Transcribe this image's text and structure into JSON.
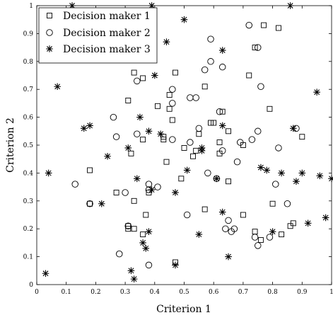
{
  "chart_data": {
    "type": "scatter",
    "title": "",
    "xlabel": "Criterion 1",
    "ylabel": "Criterion 2",
    "xlim": [
      0,
      1
    ],
    "ylim": [
      0,
      1
    ],
    "xticks": [
      "0",
      "0.1",
      "0.2",
      "0.3",
      "0.4",
      "0.5",
      "0.6",
      "0.7",
      "0.8",
      "0.9",
      "1"
    ],
    "yticks": [
      "0",
      "0.1",
      "0.2",
      "0.3",
      "0.4",
      "0.5",
      "0.6",
      "0.7",
      "0.8",
      "0.9",
      "1"
    ],
    "grid": false,
    "legend_position": "top-left",
    "series": [
      {
        "name": "Decision maker 1",
        "marker": "square",
        "color": "#000000",
        "points": [
          [
            0.18,
            0.41
          ],
          [
            0.18,
            0.29
          ],
          [
            0.27,
            0.33
          ],
          [
            0.31,
            0.2
          ],
          [
            0.31,
            0.21
          ],
          [
            0.33,
            0.2
          ],
          [
            0.33,
            0.3
          ],
          [
            0.33,
            0.76
          ],
          [
            0.36,
            0.74
          ],
          [
            0.36,
            0.52
          ],
          [
            0.36,
            0.18
          ],
          [
            0.37,
            0.25
          ],
          [
            0.38,
            0.33
          ],
          [
            0.31,
            0.66
          ],
          [
            0.32,
            0.47
          ],
          [
            0.41,
            0.64
          ],
          [
            0.43,
            0.52
          ],
          [
            0.43,
            0.53
          ],
          [
            0.44,
            0.44
          ],
          [
            0.45,
            0.63
          ],
          [
            0.45,
            0.68
          ],
          [
            0.46,
            0.59
          ],
          [
            0.47,
            0.76
          ],
          [
            0.47,
            0.08
          ],
          [
            0.49,
            0.38
          ],
          [
            0.5,
            0.49
          ],
          [
            0.53,
            0.46
          ],
          [
            0.54,
            0.48
          ],
          [
            0.55,
            0.54
          ],
          [
            0.57,
            0.71
          ],
          [
            0.57,
            0.27
          ],
          [
            0.59,
            0.58
          ],
          [
            0.6,
            0.58
          ],
          [
            0.65,
            0.55
          ],
          [
            0.62,
            0.47
          ],
          [
            0.62,
            0.51
          ],
          [
            0.63,
            0.62
          ],
          [
            0.65,
            0.37
          ],
          [
            0.7,
            0.5
          ],
          [
            0.7,
            0.25
          ],
          [
            0.72,
            0.75
          ],
          [
            0.74,
            0.19
          ],
          [
            0.74,
            0.85
          ],
          [
            0.76,
            0.16
          ],
          [
            0.77,
            0.93
          ],
          [
            0.79,
            0.63
          ],
          [
            0.8,
            0.29
          ],
          [
            0.82,
            0.92
          ],
          [
            0.83,
            0.18
          ],
          [
            0.86,
            0.21
          ],
          [
            0.87,
            0.22
          ],
          [
            0.9,
            0.53
          ]
        ]
      },
      {
        "name": "Decision maker 2",
        "marker": "circle",
        "color": "#000000",
        "points": [
          [
            0.13,
            0.36
          ],
          [
            0.18,
            0.29
          ],
          [
            0.26,
            0.6
          ],
          [
            0.27,
            0.53
          ],
          [
            0.28,
            0.11
          ],
          [
            0.3,
            0.33
          ],
          [
            0.31,
            0.21
          ],
          [
            0.34,
            0.73
          ],
          [
            0.34,
            0.54
          ],
          [
            0.38,
            0.34
          ],
          [
            0.38,
            0.36
          ],
          [
            0.38,
            0.07
          ],
          [
            0.41,
            0.35
          ],
          [
            0.46,
            0.52
          ],
          [
            0.46,
            0.65
          ],
          [
            0.46,
            0.7
          ],
          [
            0.51,
            0.25
          ],
          [
            0.52,
            0.51
          ],
          [
            0.52,
            0.67
          ],
          [
            0.54,
            0.67
          ],
          [
            0.55,
            0.56
          ],
          [
            0.57,
            0.77
          ],
          [
            0.58,
            0.4
          ],
          [
            0.59,
            0.88
          ],
          [
            0.59,
            0.8
          ],
          [
            0.61,
            0.38
          ],
          [
            0.62,
            0.62
          ],
          [
            0.63,
            0.48
          ],
          [
            0.64,
            0.2
          ],
          [
            0.65,
            0.23
          ],
          [
            0.66,
            0.19
          ],
          [
            0.67,
            0.2
          ],
          [
            0.68,
            0.44
          ],
          [
            0.69,
            0.51
          ],
          [
            0.72,
            0.93
          ],
          [
            0.73,
            0.52
          ],
          [
            0.74,
            0.17
          ],
          [
            0.75,
            0.14
          ],
          [
            0.75,
            0.85
          ],
          [
            0.76,
            0.71
          ],
          [
            0.75,
            0.55
          ],
          [
            0.79,
            0.17
          ],
          [
            0.81,
            0.36
          ],
          [
            0.82,
            0.49
          ],
          [
            0.85,
            0.29
          ],
          [
            0.88,
            0.56
          ],
          [
            0.63,
            0.78
          ]
        ]
      },
      {
        "name": "Decision maker 3",
        "marker": "star",
        "color": "#000000",
        "points": [
          [
            0.03,
            0.04
          ],
          [
            0.04,
            0.4
          ],
          [
            0.07,
            0.71
          ],
          [
            0.16,
            0.56
          ],
          [
            0.18,
            0.57
          ],
          [
            0.22,
            0.29
          ],
          [
            0.24,
            0.46
          ],
          [
            0.31,
            0.49
          ],
          [
            0.32,
            0.05
          ],
          [
            0.33,
            0.02
          ],
          [
            0.34,
            0.38
          ],
          [
            0.35,
            0.6
          ],
          [
            0.36,
            0.15
          ],
          [
            0.37,
            0.13
          ],
          [
            0.38,
            0.19
          ],
          [
            0.38,
            0.55
          ],
          [
            0.39,
            0.34
          ],
          [
            0.4,
            0.75
          ],
          [
            0.42,
            0.54
          ],
          [
            0.44,
            0.87
          ],
          [
            0.47,
            0.07
          ],
          [
            0.47,
            0.33
          ],
          [
            0.51,
            0.41
          ],
          [
            0.5,
            0.95
          ],
          [
            0.56,
            0.49
          ],
          [
            0.56,
            0.48
          ],
          [
            0.55,
            0.18
          ],
          [
            0.61,
            0.38
          ],
          [
            0.63,
            0.26
          ],
          [
            0.63,
            0.57
          ],
          [
            0.63,
            0.84
          ],
          [
            0.65,
            0.1
          ],
          [
            0.76,
            0.42
          ],
          [
            0.78,
            0.41
          ],
          [
            0.8,
            0.19
          ],
          [
            0.83,
            0.4
          ],
          [
            0.87,
            0.56
          ],
          [
            0.88,
            0.37
          ],
          [
            0.9,
            0.4
          ],
          [
            0.92,
            0.22
          ],
          [
            0.95,
            0.69
          ],
          [
            0.96,
            0.39
          ],
          [
            0.98,
            0.24
          ],
          [
            1.0,
            0.38
          ],
          [
            0.12,
            1.0
          ],
          [
            0.86,
            1.0
          ],
          [
            0.39,
            1.0
          ]
        ]
      }
    ]
  }
}
